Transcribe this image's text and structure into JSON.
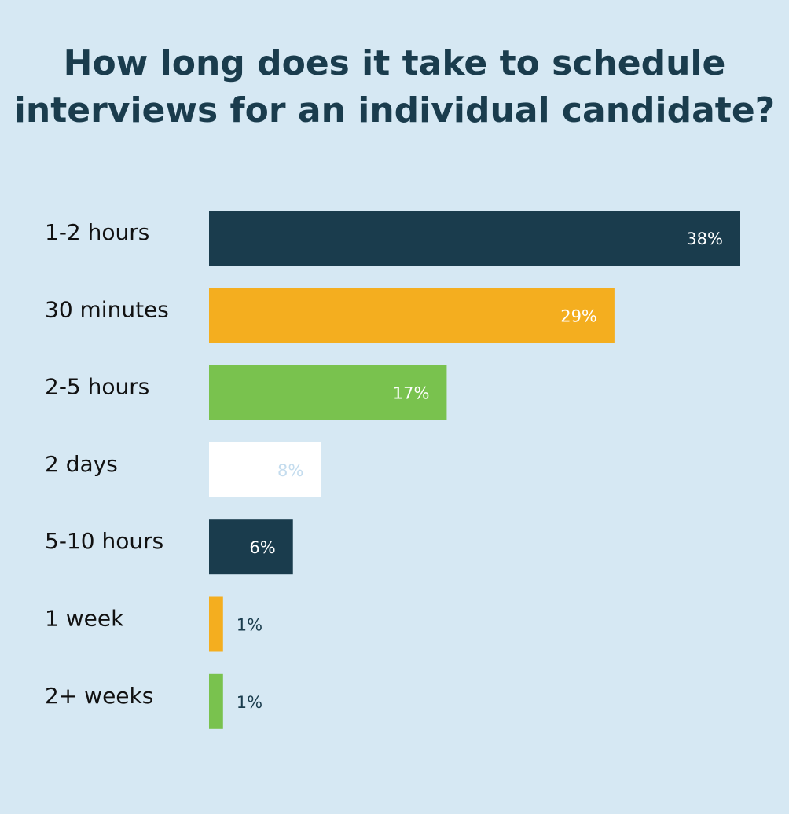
{
  "chart_data": {
    "type": "bar",
    "orientation": "horizontal",
    "title": [
      "How long does it take to schedule",
      "interviews for an individual candidate?"
    ],
    "categories": [
      "1-2 hours",
      "30 minutes",
      "2-5 hours",
      "2 days",
      "5-10 hours",
      "1 week",
      "2+ weeks"
    ],
    "values": [
      38,
      29,
      17,
      8,
      6,
      1,
      1
    ],
    "value_labels": [
      "38%",
      "29%",
      "17%",
      "8%",
      "6%",
      "1%",
      "1%"
    ],
    "colors": [
      "#1a3c4d",
      "#f4ae1f",
      "#79c24e",
      "#ffffff",
      "#1a3c4d",
      "#f4ae1f",
      "#79c24e"
    ]
  }
}
